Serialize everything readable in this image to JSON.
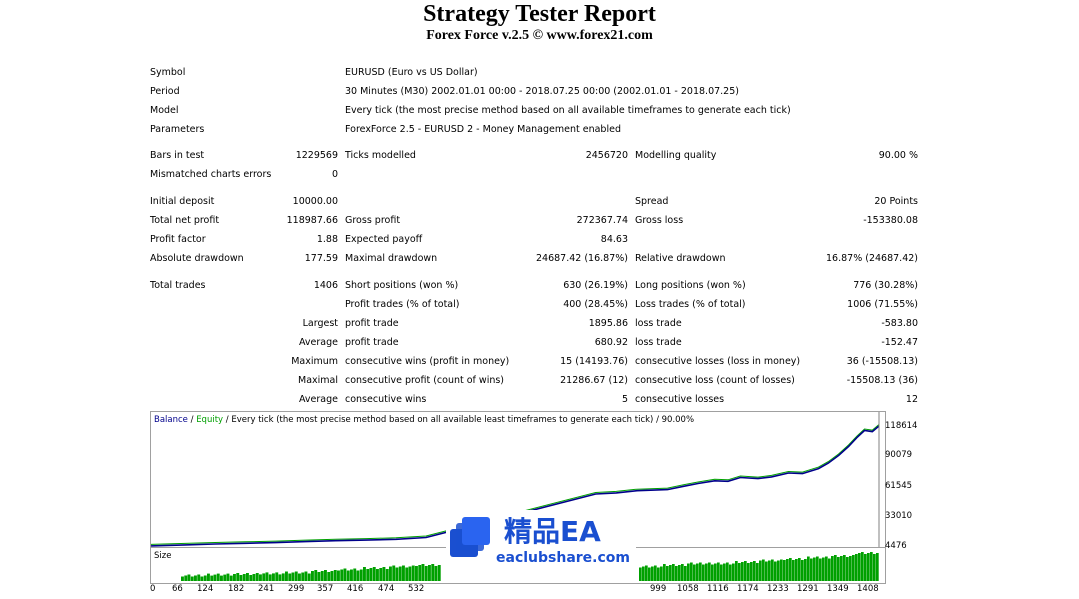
{
  "report": {
    "title": "Strategy Tester Report",
    "subtitle": "Forex Force v.2.5 © www.forex21.com"
  },
  "info": {
    "symbol_label": "Symbol",
    "symbol": "EURUSD (Euro vs US Dollar)",
    "period_label": "Period",
    "period": "30 Minutes (M30) 2002.01.01 00:00 - 2018.07.25 00:00 (2002.01.01 - 2018.07.25)",
    "model_label": "Model",
    "model": "Every tick (the most precise method based on all available timeframes to generate each tick)",
    "parameters_label": "Parameters",
    "parameters": "ForexForce 2.5 - EURUSD 2 - Money Management enabled"
  },
  "stats": {
    "bars_in_test_label": "Bars in test",
    "bars_in_test": "1229569",
    "ticks_modelled_label": "Ticks modelled",
    "ticks_modelled": "2456720",
    "modelling_quality_label": "Modelling quality",
    "modelling_quality": "90.00 %",
    "mismatched_label": "Mismatched charts errors",
    "mismatched": "0",
    "initial_deposit_label": "Initial deposit",
    "initial_deposit": "10000.00",
    "spread_label": "Spread",
    "spread": "20 Points",
    "total_net_profit_label": "Total net profit",
    "total_net_profit": "118987.66",
    "gross_profit_label": "Gross profit",
    "gross_profit": "272367.74",
    "gross_loss_label": "Gross loss",
    "gross_loss": "-153380.08",
    "profit_factor_label": "Profit factor",
    "profit_factor": "1.88",
    "expected_payoff_label": "Expected payoff",
    "expected_payoff": "84.63",
    "absolute_drawdown_label": "Absolute drawdown",
    "absolute_drawdown": "177.59",
    "maximal_drawdown_label": "Maximal drawdown",
    "maximal_drawdown": "24687.42 (16.87%)",
    "relative_drawdown_label": "Relative drawdown",
    "relative_drawdown": "16.87% (24687.42)",
    "total_trades_label": "Total trades",
    "total_trades": "1406",
    "short_positions_label": "Short positions (won %)",
    "short_positions": "630 (26.19%)",
    "long_positions_label": "Long positions (won %)",
    "long_positions": "776 (30.28%)",
    "profit_trades_label": "Profit trades (% of total)",
    "profit_trades": "400 (28.45%)",
    "loss_trades_label": "Loss trades (% of total)",
    "loss_trades": "1006 (71.55%)",
    "largest_label": "Largest",
    "largest_profit_label": "profit trade",
    "largest_profit": "1895.86",
    "largest_loss_label": "loss trade",
    "largest_loss": "-583.80",
    "average_label": "Average",
    "average_profit_label": "profit trade",
    "average_profit": "680.92",
    "average_loss_label": "loss trade",
    "average_loss": "-152.47",
    "maximum_label": "Maximum",
    "max_cons_wins_label": "consecutive wins (profit in money)",
    "max_cons_wins": "15 (14193.76)",
    "max_cons_losses_label": "consecutive losses (loss in money)",
    "max_cons_losses": "36 (-15508.13)",
    "maximal_label": "Maximal",
    "maximal_cons_profit_label": "consecutive profit (count of wins)",
    "maximal_cons_profit": "21286.67 (12)",
    "maximal_cons_loss_label": "consecutive loss (count of losses)",
    "maximal_cons_loss": "-15508.13 (36)",
    "average2_label": "Average",
    "avg_cons_wins_label": "consecutive wins",
    "avg_cons_wins": "5",
    "avg_cons_losses_label": "consecutive losses",
    "avg_cons_losses": "12"
  },
  "chart_data": {
    "type": "line",
    "legend_balance": "Balance",
    "legend_sep1": " / ",
    "legend_equity": "Equity",
    "legend_rest": " / Every tick (the most precise method based on all available least timeframes to generate each tick) / 90.00%",
    "size_label": "Size",
    "y_ticks": [
      "118614",
      "90079",
      "61545",
      "33010",
      "4476"
    ],
    "x_ticks_left": [
      "0",
      "66",
      "124",
      "182",
      "241",
      "299",
      "357",
      "416",
      "474",
      "532"
    ],
    "x_ticks_right": [
      "999",
      "1058",
      "1116",
      "1174",
      "1233",
      "1291",
      "1349",
      "1408"
    ],
    "ylim": [
      4476,
      118614
    ],
    "xlim": [
      0,
      1408
    ],
    "balance_color": "#00008b",
    "equity_color": "#00a000",
    "size_color": "#00a000",
    "balance": [
      [
        0,
        10000
      ],
      [
        66,
        10900
      ],
      [
        124,
        11700
      ],
      [
        182,
        12400
      ],
      [
        241,
        13000
      ],
      [
        299,
        13900
      ],
      [
        357,
        14700
      ],
      [
        416,
        15300
      ],
      [
        474,
        16000
      ],
      [
        532,
        17600
      ],
      [
        860,
        57000
      ],
      [
        900,
        58000
      ],
      [
        940,
        60000
      ],
      [
        999,
        61000
      ],
      [
        1030,
        64000
      ],
      [
        1058,
        66500
      ],
      [
        1090,
        69000
      ],
      [
        1116,
        68500
      ],
      [
        1140,
        72000
      ],
      [
        1174,
        71000
      ],
      [
        1200,
        72500
      ],
      [
        1233,
        76000
      ],
      [
        1260,
        75500
      ],
      [
        1291,
        80000
      ],
      [
        1310,
        85000
      ],
      [
        1330,
        92000
      ],
      [
        1349,
        100000
      ],
      [
        1365,
        108000
      ],
      [
        1380,
        114500
      ],
      [
        1395,
        113500
      ],
      [
        1408,
        118600
      ]
    ],
    "size_bars_left": [
      0.15,
      0.18,
      0.2,
      0.22,
      0.25,
      0.3,
      0.35,
      0.4,
      0.45,
      0.5
    ],
    "size_bars_right": [
      0.45,
      0.5,
      0.55,
      0.55,
      0.6,
      0.65,
      0.7,
      0.75,
      0.8,
      0.9
    ]
  },
  "watermark": {
    "cn": "精品EA",
    "url": "eaclubshare.com"
  }
}
